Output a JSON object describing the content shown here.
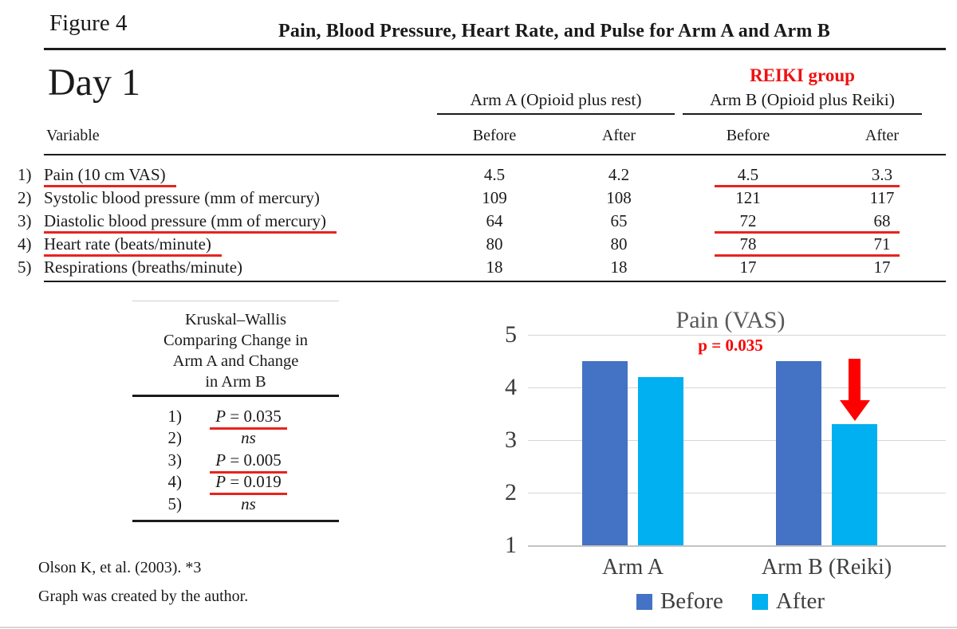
{
  "figure_label": "Figure 4",
  "page_title": "Pain, Blood Pressure, Heart Rate, and Pulse for Arm A and Arm B",
  "day_label": "Day 1",
  "table": {
    "reiki_group_label": "REIKI group",
    "group_a_header": "Arm A (Opioid plus rest)",
    "group_b_header": "Arm B (Opioid plus Reiki)",
    "variable_header": "Variable",
    "col_headers": [
      "Before",
      "After",
      "Before",
      "After"
    ],
    "rows": [
      {
        "num": "1)",
        "label": "Pain (10 cm VAS)",
        "values": [
          "4.5",
          "4.2",
          "4.5",
          "3.3"
        ],
        "label_underlined": true,
        "reiki_underlined": true
      },
      {
        "num": "2)",
        "label": "Systolic blood pressure (mm of mercury)",
        "values": [
          "109",
          "108",
          "121",
          "117"
        ],
        "label_underlined": false,
        "reiki_underlined": false
      },
      {
        "num": "3)",
        "label": "Diastolic blood pressure (mm of mercury)",
        "values": [
          "64",
          "65",
          "72",
          "68"
        ],
        "label_underlined": true,
        "reiki_underlined": true
      },
      {
        "num": "4)",
        "label": "Heart rate (beats/minute)",
        "values": [
          "80",
          "80",
          "78",
          "71"
        ],
        "label_underlined": true,
        "reiki_underlined": true
      },
      {
        "num": "5)",
        "label": "Respirations (breaths/minute)",
        "values": [
          "18",
          "18",
          "17",
          "17"
        ],
        "label_underlined": false,
        "reiki_underlined": false
      }
    ]
  },
  "kruskal": {
    "title_lines": [
      "Kruskal–Wallis",
      "Comparing Change in",
      "Arm A and Change",
      "in Arm B"
    ],
    "items": [
      {
        "num": "1)",
        "italic": "P",
        "roman": " = 0.035",
        "significant": true
      },
      {
        "num": "2)",
        "italic": "ns",
        "roman": "",
        "significant": false
      },
      {
        "num": "3)",
        "italic": "P",
        "roman": " = 0.005",
        "significant": true
      },
      {
        "num": "4)",
        "italic": "P",
        "roman": " = 0.019",
        "significant": true
      },
      {
        "num": "5)",
        "italic": "ns",
        "roman": "",
        "significant": false
      }
    ]
  },
  "chart_data": {
    "type": "bar",
    "title": "Pain (VAS)",
    "subtitle": "p = 0.035",
    "categories": [
      "Arm A",
      "Arm B (Reiki)"
    ],
    "series": [
      {
        "name": "Before",
        "color": "#4472C4",
        "values": [
          4.5,
          4.5
        ]
      },
      {
        "name": "After",
        "color": "#00B0F0",
        "values": [
          4.2,
          3.3
        ]
      }
    ],
    "xlabel": "",
    "ylabel": "",
    "ylim": [
      1,
      5
    ],
    "yticks": [
      5,
      4,
      3,
      2,
      1
    ],
    "grid": true,
    "legend_position": "bottom",
    "annotation": {
      "type": "down-arrow",
      "category": "Arm B (Reiki)",
      "series": "After",
      "color": "#ff0000"
    }
  },
  "footer": {
    "line1": "Olson K, et al. (2003). *3",
    "line2": "Graph was created by the author."
  },
  "colors": {
    "bar_before": "#4472C4",
    "bar_after": "#00B0F0",
    "highlight_red": "#E8231E",
    "arrow_red": "#FF0000",
    "chart_title_gray": "#595959",
    "axis_gray": "#3F3F3F"
  }
}
